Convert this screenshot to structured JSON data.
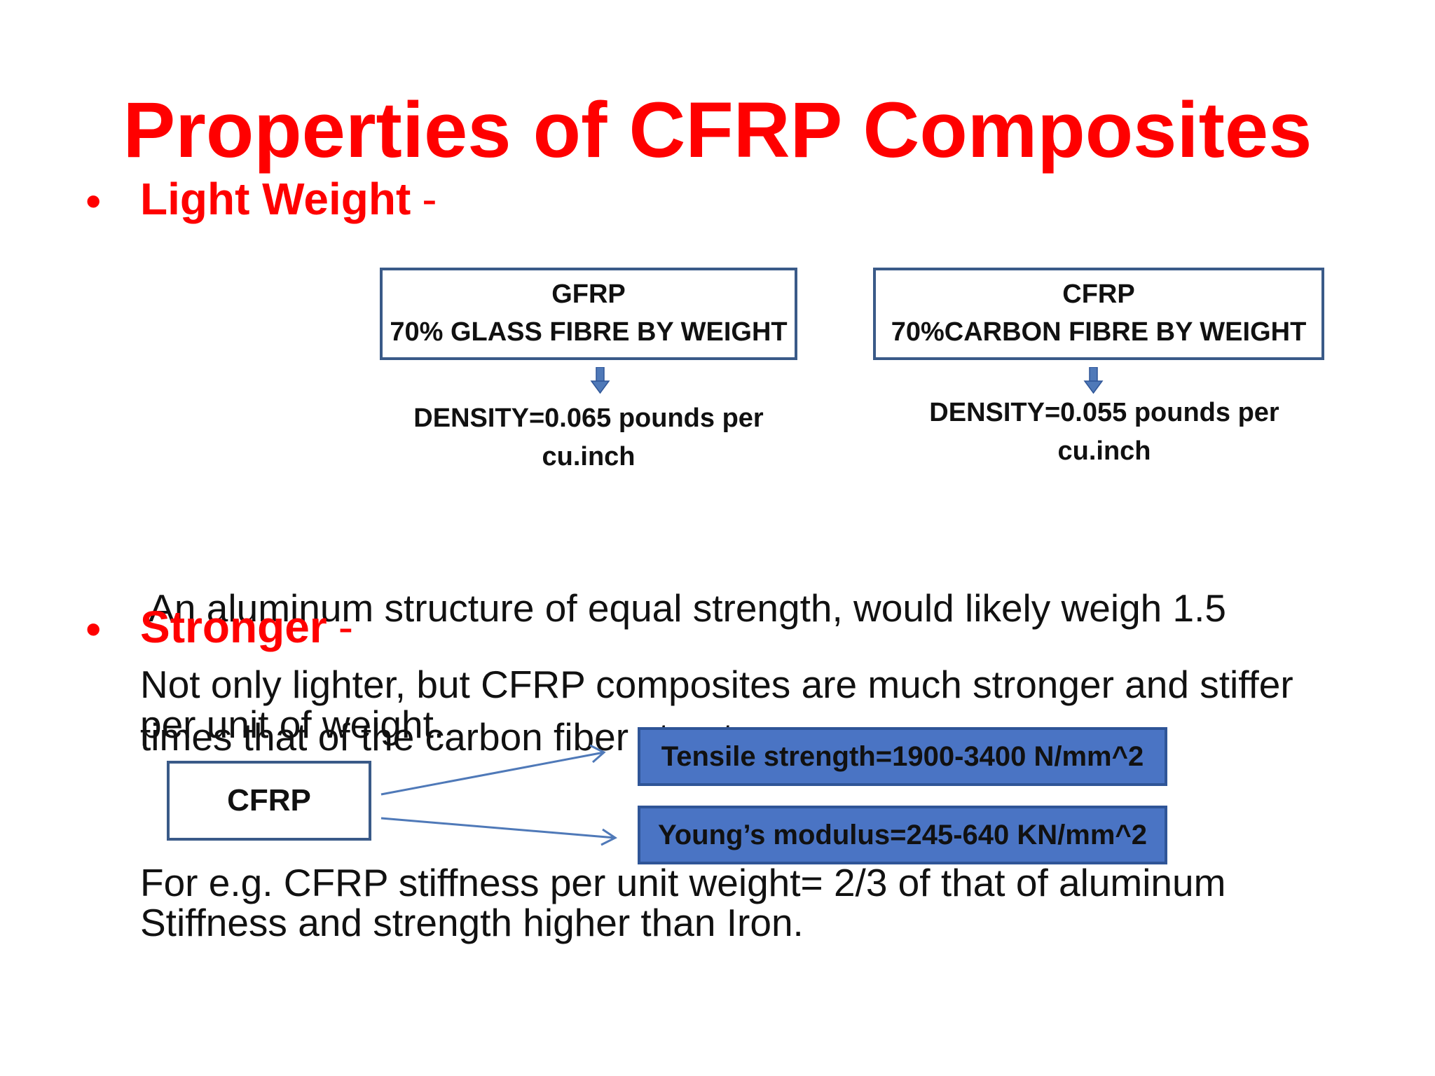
{
  "slide": {
    "title": "Properties of CFRP Composites",
    "bullet_symbol": "•",
    "section1": {
      "heading": "Light Weight",
      "dash": "-",
      "gfrp_box": {
        "line1": "GFRP",
        "line2": "70% GLASS FIBRE BY WEIGHT"
      },
      "cfrp_box": {
        "line1": "CFRP",
        "line2": "70%CARBON FIBRE BY WEIGHT"
      },
      "gfrp_density": {
        "line1": "DENSITY=0.065 pounds per",
        "line2": "cu.inch"
      },
      "cfrp_density": {
        "line1": "DENSITY=0.055 pounds per",
        "line2": "cu.inch"
      },
      "paragraph": {
        "line1": " An aluminum structure of equal strength, would likely weigh 1.5",
        "line2": "times that of the carbon fiber structure."
      }
    },
    "section2": {
      "heading": "Stronger",
      "dash": "-",
      "paragraph": {
        "line1": "Not only lighter, but CFRP composites are much stronger and stiffer",
        "line2": "per unit of weight."
      },
      "cfrp_label": "CFRP",
      "tensile": "Tensile strength=1900-3400 N/mm^2",
      "youngs": "Young’s modulus=245-640 KN/mm^2",
      "footer": {
        "line1": "For e.g. CFRP stiffness per unit weight= 2/3 of that of aluminum",
        "line2": "Stiffness and strength higher than Iron."
      }
    },
    "colors": {
      "heading_red": "#ff0000",
      "box_border": "#3a5a88",
      "blue_box_fill": "#4a74c4",
      "arrow_blue": "#4f79b8"
    }
  }
}
